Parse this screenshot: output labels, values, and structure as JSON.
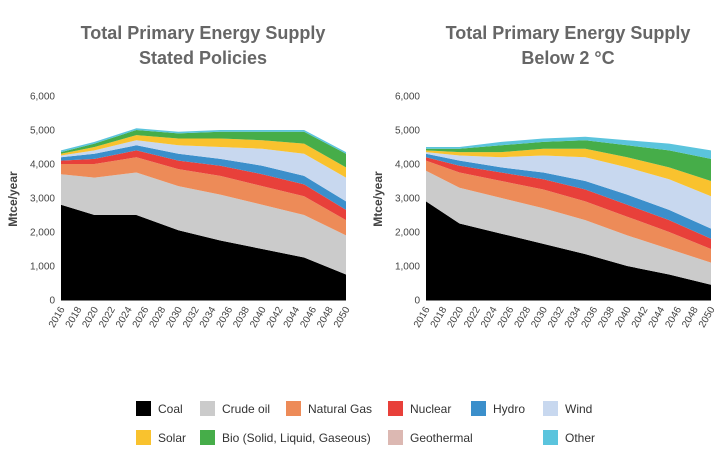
{
  "chart_data": [
    {
      "type": "area",
      "title": "Total Primary Energy Supply",
      "subtitle": "Stated Policies",
      "ylabel": "Mtce/year",
      "ylim": [
        0,
        6000
      ],
      "yticks": [
        "0",
        "1,000",
        "2,000",
        "3,000",
        "4,000",
        "5,000",
        "6,000"
      ],
      "xticks": [
        "2016",
        "2018",
        "2020",
        "2022",
        "2024",
        "2026",
        "2028",
        "2030",
        "2032",
        "2034",
        "2036",
        "2038",
        "2040",
        "2042",
        "2044",
        "2046",
        "2048",
        "2050"
      ],
      "x": [
        2016,
        2020,
        2025,
        2030,
        2035,
        2040,
        2045,
        2050
      ],
      "series": [
        {
          "name": "Coal",
          "values": [
            2800,
            2500,
            2500,
            2050,
            1750,
            1500,
            1250,
            750
          ]
        },
        {
          "name": "Crude oil",
          "values": [
            900,
            1100,
            1250,
            1300,
            1350,
            1300,
            1250,
            1150
          ]
        },
        {
          "name": "Natural Gas",
          "values": [
            300,
            400,
            450,
            500,
            550,
            550,
            550,
            450
          ]
        },
        {
          "name": "Nuclear",
          "values": [
            100,
            150,
            200,
            250,
            300,
            350,
            350,
            300
          ]
        },
        {
          "name": "Hydro",
          "values": [
            100,
            150,
            150,
            200,
            200,
            250,
            250,
            250
          ]
        },
        {
          "name": "Wind",
          "values": [
            50,
            100,
            150,
            250,
            350,
            500,
            650,
            700
          ]
        },
        {
          "name": "Solar",
          "values": [
            50,
            100,
            150,
            200,
            250,
            250,
            300,
            300
          ]
        },
        {
          "name": "Bio (Solid, Liquid, Gaseous)",
          "values": [
            50,
            100,
            150,
            150,
            200,
            250,
            350,
            400
          ]
        },
        {
          "name": "Geothermal",
          "values": [
            0,
            0,
            0,
            0,
            0,
            0,
            0,
            0
          ]
        },
        {
          "name": "Other",
          "values": [
            50,
            50,
            50,
            50,
            50,
            50,
            50,
            50
          ]
        }
      ]
    },
    {
      "type": "area",
      "title": "Total Primary Energy Supply",
      "subtitle": "Below 2 °C",
      "ylabel": "Mtce/year",
      "ylim": [
        0,
        6000
      ],
      "yticks": [
        "0",
        "1,000",
        "2,000",
        "3,000",
        "4,000",
        "5,000",
        "6,000"
      ],
      "xticks": [
        "2016",
        "2018",
        "2020",
        "2022",
        "2024",
        "2026",
        "2028",
        "2030",
        "2032",
        "2034",
        "2036",
        "2038",
        "2040",
        "2042",
        "2044",
        "2046",
        "2048",
        "2050"
      ],
      "x": [
        2016,
        2020,
        2025,
        2030,
        2035,
        2040,
        2045,
        2050
      ],
      "series": [
        {
          "name": "Coal",
          "values": [
            2900,
            2250,
            1950,
            1650,
            1350,
            1000,
            750,
            450
          ]
        },
        {
          "name": "Crude oil",
          "values": [
            900,
            1050,
            1050,
            1050,
            1000,
            900,
            750,
            650
          ]
        },
        {
          "name": "Natural Gas",
          "values": [
            300,
            450,
            500,
            550,
            550,
            550,
            500,
            400
          ]
        },
        {
          "name": "Nuclear",
          "values": [
            100,
            200,
            250,
            300,
            350,
            350,
            350,
            300
          ]
        },
        {
          "name": "Hydro",
          "values": [
            100,
            150,
            150,
            200,
            250,
            300,
            300,
            300
          ]
        },
        {
          "name": "Wind",
          "values": [
            50,
            150,
            300,
            500,
            700,
            800,
            900,
            950
          ]
        },
        {
          "name": "Solar",
          "values": [
            50,
            100,
            150,
            200,
            250,
            300,
            350,
            450
          ]
        },
        {
          "name": "Bio (Solid, Liquid, Gaseous)",
          "values": [
            50,
            100,
            200,
            200,
            250,
            350,
            500,
            650
          ]
        },
        {
          "name": "Geothermal",
          "values": [
            0,
            0,
            0,
            0,
            0,
            0,
            0,
            0
          ]
        },
        {
          "name": "Other",
          "values": [
            50,
            50,
            100,
            100,
            100,
            150,
            200,
            250
          ]
        }
      ]
    }
  ],
  "legend": [
    {
      "name": "Coal",
      "color": "#000000"
    },
    {
      "name": "Crude oil",
      "color": "#cbcbcb"
    },
    {
      "name": "Natural Gas",
      "color": "#ed8b58"
    },
    {
      "name": "Nuclear",
      "color": "#e8403a"
    },
    {
      "name": "Hydro",
      "color": "#3b8fcb"
    },
    {
      "name": "Wind",
      "color": "#c8d8ef"
    },
    {
      "name": "Solar",
      "color": "#f9c22e"
    },
    {
      "name": "Bio (Solid, Liquid, Gaseous)",
      "color": "#46ad49"
    },
    {
      "name": "Geothermal",
      "color": "#dcb8b2"
    },
    {
      "name": "Other",
      "color": "#5bc4dd"
    }
  ]
}
